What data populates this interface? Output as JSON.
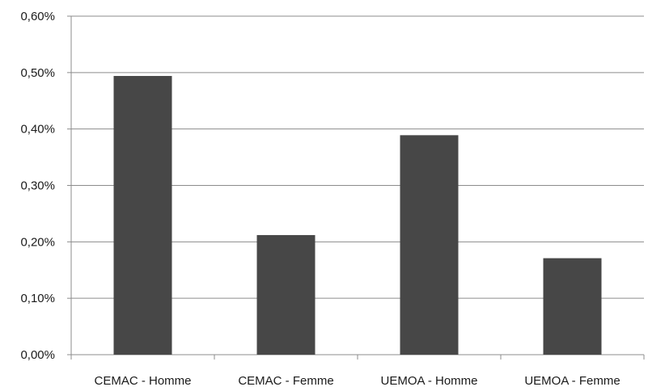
{
  "chart_data": {
    "type": "bar",
    "categories": [
      "CEMAC - Homme",
      "CEMAC - Femme",
      "UEMOA - Homme",
      "UEMOA - Femme"
    ],
    "values": [
      0.494,
      0.212,
      0.389,
      0.171
    ],
    "y_ticks": [
      "0,00%",
      "0,10%",
      "0,20%",
      "0,30%",
      "0,40%",
      "0,50%",
      "0,60%"
    ],
    "ylim": [
      0,
      0.6
    ],
    "grid": true,
    "bar_color": "#474747",
    "grid_color": "#8c8c8c",
    "axis_color": "#8c8c8c"
  }
}
